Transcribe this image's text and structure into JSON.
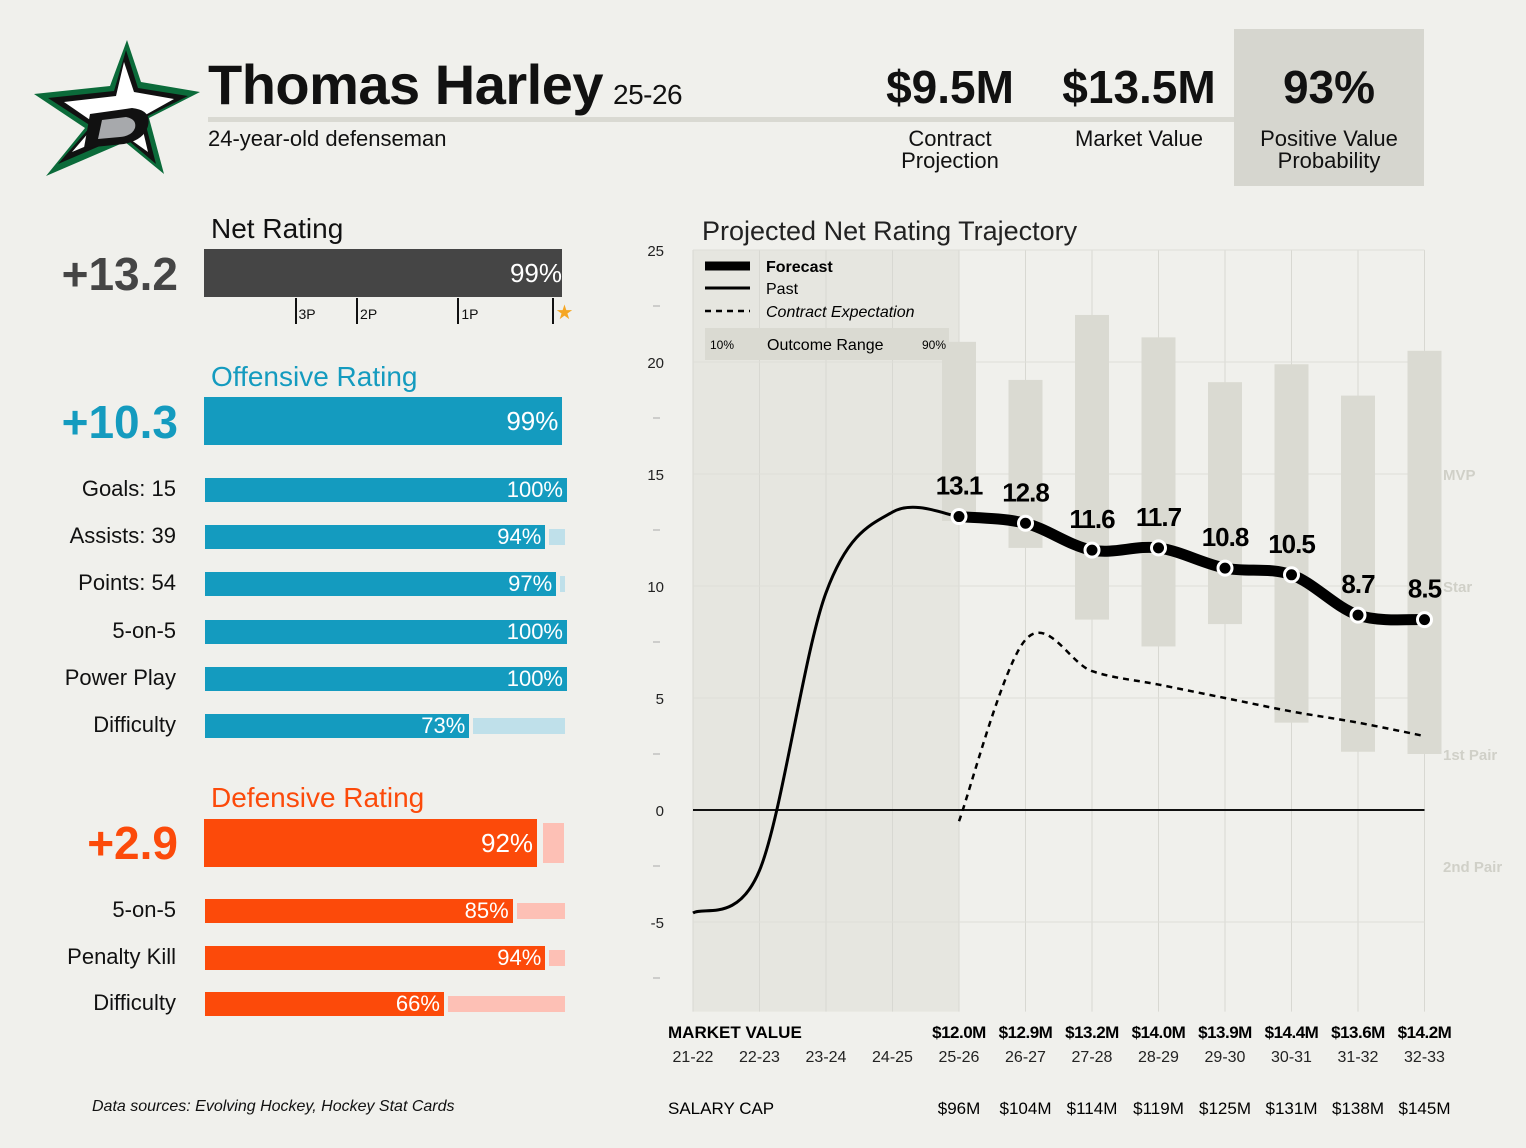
{
  "header": {
    "player_name": "Thomas Harley",
    "season": "25-26",
    "subtitle": "24-year-old defenseman",
    "logo_icon": "dallas-stars-star-d-logo",
    "stats": [
      {
        "value": "$9.5M",
        "label": "Contract Projection"
      },
      {
        "value": "$13.5M",
        "label": "Market Value"
      },
      {
        "value": "93%",
        "label": "Positive Value Probability"
      }
    ]
  },
  "net_rating": {
    "title": "Net Rating",
    "value": "+13.2",
    "percentile": 99,
    "pct_label": "99%",
    "color": "#454545",
    "tier_ticks": [
      {
        "label": "3P",
        "pct": 25
      },
      {
        "label": "2P",
        "pct": 42
      },
      {
        "label": "1P",
        "pct": 70
      },
      {
        "label": "★",
        "pct": 96
      }
    ]
  },
  "offensive": {
    "title": "Offensive Rating",
    "value": "+10.3",
    "percentile": 99,
    "pct_label": "99%",
    "color": "#149bbf",
    "light_color": "#bfe0ea",
    "rows": [
      {
        "label": "Goals: 15",
        "percentile": 100,
        "pct_label": "100%"
      },
      {
        "label": "Assists: 39",
        "percentile": 94,
        "pct_label": "94%"
      },
      {
        "label": "Points: 54",
        "percentile": 97,
        "pct_label": "97%"
      },
      {
        "label": "5-on-5",
        "percentile": 100,
        "pct_label": "100%"
      },
      {
        "label": "Power Play",
        "percentile": 100,
        "pct_label": "100%"
      },
      {
        "label": "Difficulty",
        "percentile": 73,
        "pct_label": "73%"
      }
    ]
  },
  "defensive": {
    "title": "Defensive Rating",
    "value": "+2.9",
    "percentile": 92,
    "pct_label": "92%",
    "color": "#fc4a0a",
    "light_color": "#fdc0b5",
    "rows": [
      {
        "label": "5-on-5",
        "percentile": 85,
        "pct_label": "85%"
      },
      {
        "label": "Penalty Kill",
        "percentile": 94,
        "pct_label": "94%"
      },
      {
        "label": "Difficulty",
        "percentile": 66,
        "pct_label": "66%"
      }
    ]
  },
  "footnote": "Data sources: Evolving Hockey, Hockey Stat Cards",
  "chart_data": {
    "type": "line",
    "title": "Projected Net Rating Trajectory",
    "ylim": [
      -9,
      25
    ],
    "yticks": [
      25,
      20,
      15,
      10,
      5,
      0,
      -5
    ],
    "x": [
      "21-22",
      "22-23",
      "23-24",
      "24-25",
      "25-26",
      "26-27",
      "27-28",
      "28-29",
      "29-30",
      "30-31",
      "31-32",
      "32-33"
    ],
    "past": {
      "name": "Past",
      "x": [
        "21-22",
        "22-23",
        "23-24",
        "24-25",
        "25-26"
      ],
      "values": [
        -4.6,
        -2.7,
        9.7,
        13.3,
        13.1
      ]
    },
    "forecast": {
      "name": "Forecast",
      "x": [
        "25-26",
        "26-27",
        "27-28",
        "28-29",
        "29-30",
        "30-31",
        "31-32",
        "32-33"
      ],
      "values": [
        13.1,
        12.8,
        11.6,
        11.7,
        10.8,
        10.5,
        8.7,
        8.5
      ],
      "labels": [
        "13.1",
        "12.8",
        "11.6",
        "11.7",
        "10.8",
        "10.5",
        "8.7",
        "8.5"
      ]
    },
    "contract_expectation": {
      "name": "Contract Expectation",
      "x": [
        "25-26",
        "26-27",
        "27-28",
        "28-29",
        "29-30",
        "30-31",
        "31-32",
        "32-33"
      ],
      "values": [
        -0.5,
        7.6,
        6.2,
        5.6,
        5.0,
        4.4,
        3.9,
        3.3
      ]
    },
    "outcome_range": {
      "name": "Outcome Range",
      "low_label": "10%",
      "high_label": "90%",
      "x": [
        "25-26",
        "26-27",
        "27-28",
        "28-29",
        "29-30",
        "30-31",
        "31-32",
        "32-33"
      ],
      "low": [
        12.9,
        11.7,
        8.5,
        7.3,
        8.3,
        3.9,
        2.6,
        2.5
      ],
      "high": [
        20.9,
        19.2,
        22.1,
        21.1,
        19.1,
        19.9,
        18.5,
        20.5
      ]
    },
    "tier_labels": [
      {
        "label": "MVP",
        "y": 15
      },
      {
        "label": "Star",
        "y": 10
      },
      {
        "label": "1st Pair",
        "y": 2.5
      },
      {
        "label": "2nd Pair",
        "y": -2.5
      }
    ],
    "legend": [
      "Forecast",
      "Past",
      "Contract Expectation",
      "Outcome Range"
    ],
    "market_value_label": "MARKET VALUE",
    "market_values": [
      "$12.0M",
      "$12.9M",
      "$13.2M",
      "$14.0M",
      "$13.9M",
      "$14.4M",
      "$13.6M",
      "$14.2M"
    ],
    "salary_cap_label": "SALARY CAP",
    "salary_caps": [
      "$96M",
      "$104M",
      "$114M",
      "$119M",
      "$125M",
      "$131M",
      "$138M",
      "$145M"
    ],
    "colors": {
      "forecast": "#000000",
      "range": "#dadad2",
      "past_shade": "#e6e6e0",
      "tier_text": "#d0d0c8"
    }
  }
}
